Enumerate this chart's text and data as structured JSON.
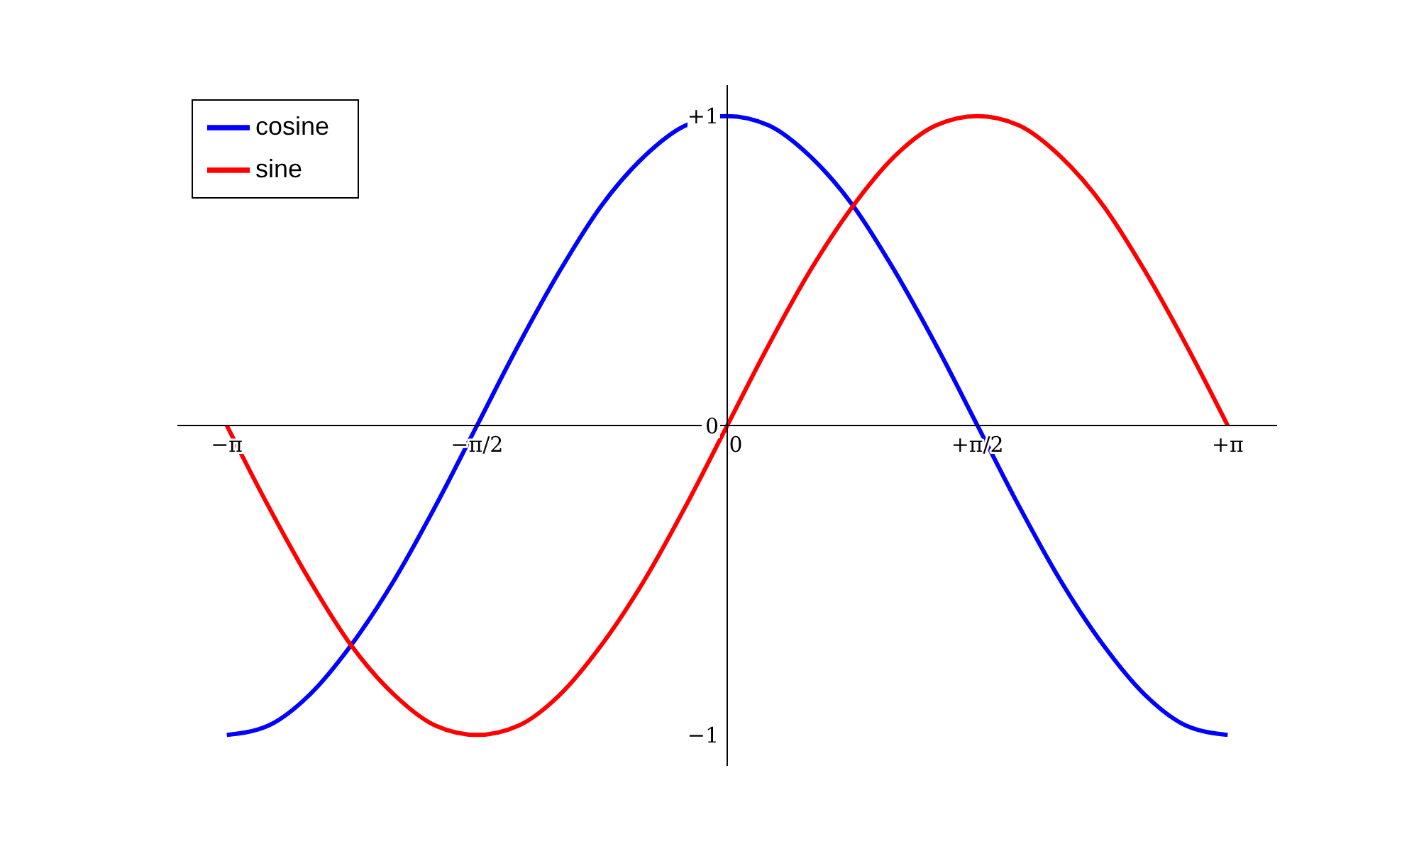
{
  "chart_data": {
    "type": "line",
    "x": [
      -3.14,
      -2.88,
      -2.62,
      -2.36,
      -2.09,
      -1.83,
      -1.57,
      -1.31,
      -1.05,
      -0.79,
      -0.52,
      -0.26,
      0,
      0.26,
      0.52,
      0.79,
      1.05,
      1.31,
      1.57,
      1.83,
      2.09,
      2.36,
      2.62,
      2.88,
      3.14
    ],
    "series": [
      {
        "name": "cosine",
        "color": "#0000ff",
        "values": [
          -1,
          -0.97,
          -0.87,
          -0.71,
          -0.5,
          -0.26,
          0,
          0.26,
          0.5,
          0.71,
          0.87,
          0.97,
          1,
          0.97,
          0.87,
          0.71,
          0.5,
          0.26,
          0,
          -0.26,
          -0.5,
          -0.71,
          -0.87,
          -0.97,
          -1
        ]
      },
      {
        "name": "sine",
        "color": "#ff0000",
        "values": [
          0,
          -0.26,
          -0.5,
          -0.71,
          -0.87,
          -0.97,
          -1,
          -0.97,
          -0.87,
          -0.71,
          -0.5,
          -0.26,
          0,
          0.26,
          0.5,
          0.71,
          0.87,
          0.97,
          1,
          0.97,
          0.87,
          0.71,
          0.5,
          0.26,
          0
        ]
      }
    ],
    "xlim": [
      -3.45,
      3.45
    ],
    "ylim": [
      -1.1,
      1.1
    ],
    "xticks": [
      {
        "value": -3.14,
        "label": "−π"
      },
      {
        "value": -1.57,
        "label": "−π/2"
      },
      0,
      {
        "value": 1.57,
        "label": "+π/2"
      },
      {
        "value": 3.14,
        "label": "+π"
      }
    ],
    "yticks": [
      {
        "value": -1,
        "label": "−1"
      },
      0,
      {
        "value": 1,
        "label": "+1"
      }
    ],
    "legend": "top left",
    "line_style": "solid"
  }
}
